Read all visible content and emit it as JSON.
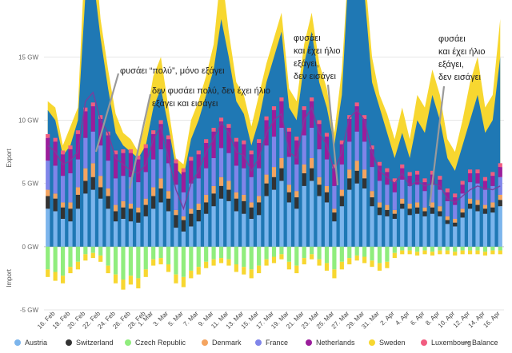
{
  "chart_data": {
    "type": "bar",
    "stacked": true,
    "y_unit": "GW",
    "ylim": [
      -5,
      19
    ],
    "yticks": [
      -5,
      0,
      5,
      10,
      15
    ],
    "ytick_labels": [
      "-5 GW",
      "0 GW",
      "5 GW",
      "10 GW",
      "15 GW"
    ],
    "ylabel_top": "Export",
    "ylabel_bottom": "Import",
    "grid": true,
    "legend_position": "bottom",
    "x": [
      "15 Feb",
      "16 Feb",
      "17 Feb",
      "18 Feb",
      "19 Feb",
      "20 Feb",
      "21 Feb",
      "22 Feb",
      "23 Feb",
      "24 Feb",
      "25 Feb",
      "26 Feb",
      "27 Feb",
      "28 Feb",
      "1 Mar",
      "2 Mar",
      "3 Mar",
      "4 Mar",
      "5 Mar",
      "6 Mar",
      "7 Mar",
      "8 Mar",
      "9 Mar",
      "10 Mar",
      "11 Mar",
      "12 Mar",
      "13 Mar",
      "14 Mar",
      "15 Mar",
      "16 Mar",
      "17 Mar",
      "18 Mar",
      "19 Mar",
      "20 Mar",
      "21 Mar",
      "22 Mar",
      "23 Mar",
      "24 Mar",
      "25 Mar",
      "26 Mar",
      "27 Mar",
      "28 Mar",
      "29 Mar",
      "30 Mar",
      "31 Mar",
      "1 Apr",
      "2 Apr",
      "3 Apr",
      "4 Apr",
      "5 Apr",
      "6 Apr",
      "7 Apr",
      "8 Apr",
      "9 Apr",
      "10 Apr",
      "11 Apr",
      "12 Apr",
      "13 Apr",
      "14 Apr",
      "15 Apr",
      "16 Apr"
    ],
    "xtick_labels": [
      "16. Feb",
      "18. Feb",
      "20. Feb",
      "22. Feb",
      "24. Feb",
      "26. Feb",
      "28. Feb",
      "1. Mar",
      "3. Mar",
      "5. Mar",
      "7. Mar",
      "9. Mar",
      "11. Mar",
      "13. Mar",
      "15. Mar",
      "17. Mar",
      "19. Mar",
      "21. Mar",
      "23. Mar",
      "25. Mar",
      "27. Mar",
      "29. Mar",
      "31. Mar",
      "2. Apr",
      "4. Apr",
      "6. Apr",
      "8. Apr",
      "10. Apr",
      "12. Apr",
      "14. Apr",
      "16. Apr"
    ],
    "xtick_index": [
      1,
      3,
      5,
      7,
      9,
      11,
      13,
      14,
      16,
      18,
      20,
      22,
      24,
      26,
      28,
      30,
      32,
      34,
      36,
      38,
      40,
      42,
      44,
      46,
      48,
      50,
      52,
      54,
      56,
      58,
      60
    ],
    "colors": {
      "Austria": "#7cb5ec",
      "Switzerland": "#333333",
      "Czech Republic": "#90ed7d",
      "Denmark": "#f4a460",
      "France": "#8085e9",
      "Netherlands": "#9b1d9b",
      "Sweden": "#f7d730",
      "Luxembourg": "#f15c80",
      "Balance": "#7a3e9d",
      "wind_area": "#1f78b4"
    },
    "series": [
      {
        "name": "Austria",
        "values": [
          3,
          2.8,
          2.2,
          2,
          3,
          4.2,
          4.5,
          3.8,
          3,
          2,
          2.2,
          2,
          1.9,
          2.4,
          3,
          3.5,
          2.8,
          1.5,
          1.2,
          1.6,
          2,
          2.6,
          3.2,
          3.8,
          3.6,
          2.8,
          2.6,
          2.2,
          2.5,
          4,
          4.5,
          5.2,
          3.5,
          3,
          4.8,
          5.2,
          4,
          3.5,
          2,
          3.2,
          4.5,
          5,
          4.6,
          3.2,
          2.5,
          2.4,
          2.2,
          3,
          2.5,
          2.6,
          2.4,
          2.6,
          2.4,
          1.8,
          1.6,
          2.3,
          3,
          2.8,
          2.6,
          2.7,
          3.2
        ]
      },
      {
        "name": "Switzerland",
        "values": [
          1,
          1,
          0.9,
          1,
          1.1,
          1,
          1,
          0.9,
          1,
          0.8,
          0.9,
          1,
          0.8,
          0.9,
          1,
          1.1,
          1,
          1,
          0.9,
          1,
          0.9,
          0.9,
          1,
          1,
          0.9,
          1,
          1,
          0.9,
          1,
          1,
          1,
          1,
          0.8,
          0.9,
          1,
          1,
          0.9,
          0.8,
          0.7,
          0.8,
          0.9,
          1,
          0.8,
          0.7,
          0.6,
          0.5,
          0.4,
          0.4,
          0.5,
          0.5,
          0.4,
          0.5,
          0.4,
          0.3,
          0.3,
          0.4,
          0.4,
          0.5,
          0.4,
          0.4,
          0.5
        ]
      },
      {
        "name": "Denmark",
        "values": [
          0.5,
          0.4,
          0.4,
          0.5,
          0.6,
          1,
          1.1,
          0.9,
          0.6,
          0.5,
          0.5,
          0.4,
          0.4,
          0.5,
          0.7,
          0.8,
          0.6,
          0.4,
          0.3,
          0.4,
          0.5,
          0.6,
          0.6,
          0.7,
          0.7,
          0.5,
          0.5,
          0.4,
          0.5,
          0.7,
          0.8,
          0.8,
          0.6,
          0.5,
          0.7,
          0.8,
          0.6,
          0.5,
          0.3,
          0.5,
          0.7,
          0.8,
          0.7,
          0.5,
          0.4,
          0.4,
          0.3,
          0.4,
          0.4,
          0.4,
          0.3,
          0.4,
          0.4,
          0.3,
          0.3,
          0.3,
          0.4,
          0.4,
          0.3,
          0.4,
          0.4
        ]
      },
      {
        "name": "France",
        "values": [
          2.3,
          2.2,
          2.1,
          2.3,
          2.2,
          2.4,
          2.5,
          2.4,
          2.2,
          2.1,
          2,
          2.1,
          2,
          2.1,
          2.2,
          2.3,
          2.2,
          2,
          1.9,
          2,
          2,
          2.1,
          2.2,
          2.3,
          2.2,
          2.1,
          2.1,
          2,
          2.2,
          2.3,
          2.4,
          2.4,
          2.2,
          2.1,
          2.3,
          2.4,
          2.2,
          2.1,
          1.8,
          2,
          2.2,
          2.3,
          2.2,
          1.9,
          1.7,
          1.6,
          1.4,
          1.5,
          1.4,
          1.4,
          1.3,
          1.4,
          1.3,
          1.2,
          1.1,
          1.2,
          1.3,
          1.3,
          1.2,
          1.3,
          1.4
        ]
      },
      {
        "name": "Netherlands",
        "values": [
          1.8,
          1.9,
          1.7,
          1.9,
          2,
          2.1,
          2,
          2.1,
          2,
          1.9,
          1.8,
          1.9,
          1.8,
          1.9,
          2,
          2,
          1.9,
          1.7,
          1.6,
          1.8,
          1.9,
          2,
          2.1,
          2.1,
          2,
          1.9,
          1.9,
          1.8,
          2,
          2,
          2.1,
          2.1,
          2,
          1.9,
          2,
          2.1,
          2,
          1.8,
          1.4,
          1.6,
          1.8,
          2,
          1.8,
          1.4,
          1.2,
          1,
          0.8,
          0.9,
          0.8,
          0.8,
          0.7,
          0.8,
          0.8,
          0.7,
          0.6,
          0.7,
          0.7,
          0.8,
          0.7,
          0.8,
          0.8
        ]
      },
      {
        "name": "Luxembourg",
        "values": [
          0.3,
          0.3,
          0.3,
          0.3,
          0.3,
          0.3,
          0.3,
          0.3,
          0.3,
          0.3,
          0.3,
          0.3,
          0.3,
          0.3,
          0.3,
          0.3,
          0.3,
          0.3,
          0.3,
          0.3,
          0.3,
          0.3,
          0.3,
          0.3,
          0.3,
          0.3,
          0.3,
          0.3,
          0.3,
          0.3,
          0.3,
          0.3,
          0.3,
          0.3,
          0.3,
          0.3,
          0.3,
          0.3,
          0.3,
          0.3,
          0.3,
          0.3,
          0.3,
          0.3,
          0.3,
          0.3,
          0.3,
          0.3,
          0.3,
          0.3,
          0.3,
          0.3,
          0.3,
          0.3,
          0.3,
          0.3,
          0.3,
          0.3,
          0.3,
          0.3,
          0.3
        ]
      },
      {
        "name": "Czech Republic",
        "values": [
          -1.8,
          -2,
          -2.3,
          -1.6,
          -1.2,
          -0.6,
          -0.5,
          -0.7,
          -1.5,
          -2.2,
          -2.6,
          -2.3,
          -2.5,
          -1.8,
          -1,
          -0.9,
          -1.4,
          -2.2,
          -2.4,
          -1.9,
          -1.6,
          -1.2,
          -1,
          -0.9,
          -1,
          -1.4,
          -1.6,
          -1.8,
          -1.5,
          -1,
          -0.8,
          -0.6,
          -1.2,
          -1.5,
          -0.9,
          -0.6,
          -1,
          -1.3,
          -1.8,
          -1.2,
          -0.9,
          -0.7,
          -0.8,
          -1.1,
          -1.3,
          -1.2,
          -0.5,
          -0.3,
          -0.3,
          -0.4,
          -0.3,
          -0.4,
          -0.3,
          -0.3,
          -0.4,
          -0.3,
          -0.3,
          -0.3,
          -0.4,
          -0.3,
          -0.3
        ]
      },
      {
        "name": "Sweden",
        "values": [
          -0.6,
          -0.7,
          -0.6,
          -0.5,
          -0.6,
          -0.5,
          -0.4,
          -0.5,
          -0.6,
          -0.7,
          -0.8,
          -0.7,
          -0.8,
          -0.6,
          -0.5,
          -0.5,
          -0.6,
          -0.7,
          -0.8,
          -0.6,
          -0.6,
          -0.5,
          -0.5,
          -0.4,
          -0.5,
          -0.6,
          -0.6,
          -0.7,
          -0.6,
          -0.5,
          -0.5,
          -0.4,
          -0.6,
          -0.6,
          -0.5,
          -0.4,
          -0.5,
          -0.6,
          -0.7,
          -0.6,
          -0.5,
          -0.4,
          -0.5,
          -0.5,
          -0.6,
          -0.5,
          -0.4,
          -0.3,
          -0.3,
          -0.3,
          -0.3,
          -0.3,
          -0.3,
          -0.3,
          -0.3,
          -0.3,
          -0.3,
          -0.3,
          -0.3,
          -0.3,
          -0.3
        ]
      }
    ],
    "balance": [
      8,
      7.5,
      6.5,
      6.8,
      7.5,
      11.5,
      12.2,
      10,
      9,
      7,
      6.5,
      6,
      5.8,
      6.5,
      8.5,
      9.5,
      7,
      4.5,
      3,
      5,
      6,
      7.5,
      8.5,
      9.8,
      9,
      7.5,
      7.2,
      6,
      7,
      9,
      10,
      10.5,
      7.5,
      7,
      10,
      11,
      9,
      8,
      6,
      7.5,
      10.2,
      10.8,
      10,
      7.5,
      6,
      5.5,
      5,
      5.8,
      4.8,
      5.2,
      4.8,
      5,
      4.8,
      3.8,
      3.5,
      4,
      4.5,
      4.8,
      4.6,
      4.5,
      4.8
    ],
    "wind_total": [
      10.8,
      10,
      7.2,
      8,
      10,
      20,
      21.5,
      16.5,
      12.5,
      9,
      8,
      7.5,
      7,
      8,
      11,
      12.5,
      9.5,
      6.2,
      5.5,
      8.5,
      10,
      12,
      14,
      18,
      15,
      11.5,
      10.5,
      8,
      10,
      13,
      15,
      17,
      11,
      10,
      14.5,
      17,
      13,
      11,
      8,
      12,
      23,
      25,
      20,
      13,
      11,
      9,
      7,
      9,
      7,
      10,
      9,
      12,
      10,
      7,
      6,
      8,
      10,
      12,
      9,
      10,
      15
    ],
    "solar_total": [
      11.5,
      11,
      8,
      9.5,
      11,
      24,
      25,
      18,
      14,
      10.5,
      9,
      8.5,
      7.5,
      10,
      13.5,
      15,
      11,
      7,
      6.5,
      10,
      11.5,
      13.5,
      16,
      22,
      17,
      13,
      12,
      9.5,
      12,
      14.5,
      16.5,
      18.5,
      12.5,
      11.5,
      16,
      18.5,
      14.5,
      12.5,
      9,
      14,
      23.5,
      26,
      22,
      15,
      12,
      10.5,
      8.5,
      11,
      8.5,
      12,
      11,
      14,
      12,
      8.5,
      7.5,
      10,
      13,
      15,
      11,
      12,
      18
    ],
    "annotations": [
      {
        "text": "φυσάει “πολύ”, μόνο εξάγει"
      },
      {
        "text": "δεν φυσάει πολύ, δεν έχει ήλιο"
      },
      {
        "text": "εξάγει και εισάγει"
      },
      {
        "text": "φυσάει"
      },
      {
        "text": "και έχει ήλιο"
      },
      {
        "text": "εξάγει,"
      },
      {
        "text": "δεν εισάγει"
      },
      {
        "text": "φυσάει"
      },
      {
        "text": "και έχει ήλιο"
      },
      {
        "text": "εξάγει,"
      },
      {
        "text": "δεν εισάγει"
      }
    ],
    "legend": [
      "Austria",
      "Switzerland",
      "Czech Republic",
      "Denmark",
      "France",
      "Netherlands",
      "Sweden",
      "Luxembourg",
      "Balance"
    ]
  }
}
